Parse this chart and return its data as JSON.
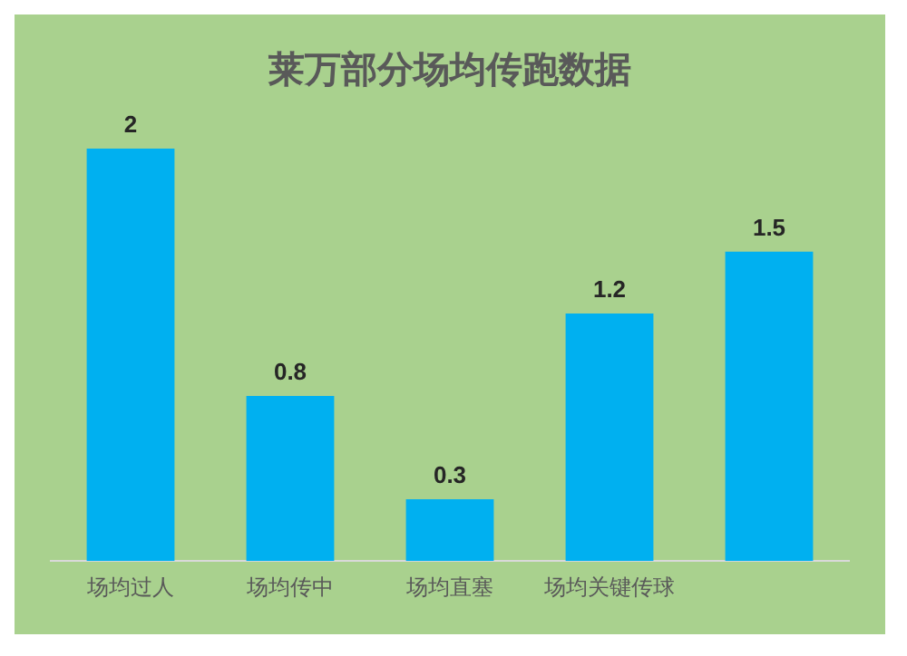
{
  "chart_data": {
    "type": "bar",
    "title": "莱万部分场均传跑数据",
    "categories": [
      "场均过人",
      "场均传中",
      "场均直塞",
      "场均关键传球",
      null
    ],
    "values": [
      2,
      0.8,
      0.3,
      1.2,
      1.5
    ],
    "color": "#00b0f0",
    "data_labels": true,
    "grid": false,
    "legend": false
  }
}
